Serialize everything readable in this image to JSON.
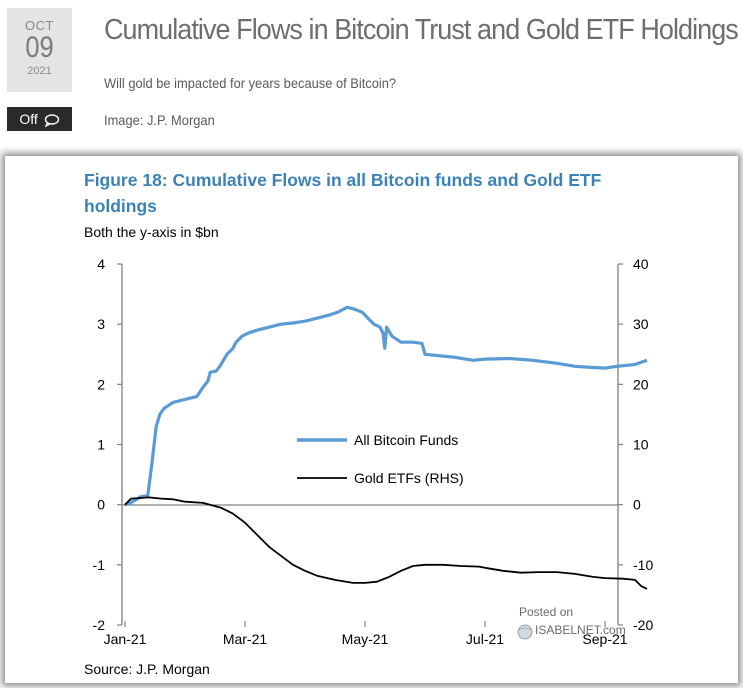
{
  "post": {
    "date_month": "OCT",
    "date_day": "09",
    "date_year": "2021",
    "comments_label": "Off",
    "title": "Cumulative Flows in Bitcoin Trust and Gold ETF Holdings",
    "subtitle": "Will gold be impacted for years because of Bitcoin?",
    "image_credit": "Image: J.P. Morgan"
  },
  "colors": {
    "figure_title": "#3b82b9",
    "bitcoin_series": "#5b9bd5",
    "gold_series": "#000000",
    "axis": "#808080"
  },
  "chart_data": {
    "type": "line",
    "title": "Figure 18: Cumulative Flows in all Bitcoin funds and Gold ETF holdings",
    "title_line1": "Figure 18: Cumulative Flows in all Bitcoin funds and Gold ETF",
    "title_line2": "holdings",
    "subtitle": "Both the y-axis in $bn",
    "source": "Source: J.P. Morgan",
    "watermark_line1": "Posted on",
    "watermark_line2": "ISABELNET.com",
    "x_range": [
      0,
      8.7
    ],
    "x_ticks": [
      {
        "label": "Jan-21",
        "x": 0
      },
      {
        "label": "Mar-21",
        "x": 2
      },
      {
        "label": "May-21",
        "x": 4
      },
      {
        "label": "Jul-21",
        "x": 6
      },
      {
        "label": "Sep-21",
        "x": 8
      }
    ],
    "ylim_left": [
      -2,
      4
    ],
    "yticks_left": [
      4,
      3,
      2,
      1,
      0,
      -1,
      -2
    ],
    "ylim_right": [
      -20,
      40
    ],
    "yticks_right": [
      40,
      30,
      20,
      10,
      0,
      -10,
      -20
    ],
    "legend": {
      "position": "center",
      "entries": [
        "All Bitcoin Funds",
        "Gold ETFs (RHS)"
      ]
    },
    "series": [
      {
        "name": "All Bitcoin Funds",
        "axis": "left",
        "points": [
          [
            0,
            0
          ],
          [
            0.08,
            0.02
          ],
          [
            0.12,
            0.05
          ],
          [
            0.22,
            0.1
          ],
          [
            0.25,
            0.13
          ],
          [
            0.38,
            0.15
          ],
          [
            0.45,
            0.7
          ],
          [
            0.52,
            1.3
          ],
          [
            0.58,
            1.5
          ],
          [
            0.65,
            1.6
          ],
          [
            0.8,
            1.7
          ],
          [
            1,
            1.75
          ],
          [
            1.2,
            1.8
          ],
          [
            1.3,
            1.95
          ],
          [
            1.38,
            2.05
          ],
          [
            1.42,
            2.2
          ],
          [
            1.52,
            2.22
          ],
          [
            1.58,
            2.3
          ],
          [
            1.7,
            2.5
          ],
          [
            1.8,
            2.6
          ],
          [
            1.85,
            2.7
          ],
          [
            1.95,
            2.8
          ],
          [
            2.05,
            2.85
          ],
          [
            2.2,
            2.9
          ],
          [
            2.4,
            2.95
          ],
          [
            2.6,
            3.0
          ],
          [
            2.8,
            3.02
          ],
          [
            3,
            3.05
          ],
          [
            3.2,
            3.1
          ],
          [
            3.4,
            3.15
          ],
          [
            3.55,
            3.2
          ],
          [
            3.7,
            3.28
          ],
          [
            3.82,
            3.25
          ],
          [
            3.95,
            3.2
          ],
          [
            4.05,
            3.1
          ],
          [
            4.15,
            3.0
          ],
          [
            4.25,
            2.95
          ],
          [
            4.3,
            2.85
          ],
          [
            4.33,
            2.6
          ],
          [
            4.36,
            2.95
          ],
          [
            4.45,
            2.8
          ],
          [
            4.6,
            2.7
          ],
          [
            4.8,
            2.7
          ],
          [
            4.95,
            2.68
          ],
          [
            5,
            2.5
          ],
          [
            5.2,
            2.48
          ],
          [
            5.5,
            2.45
          ],
          [
            5.8,
            2.4
          ],
          [
            6,
            2.42
          ],
          [
            6.4,
            2.43
          ],
          [
            6.8,
            2.4
          ],
          [
            7.2,
            2.35
          ],
          [
            7.5,
            2.3
          ],
          [
            7.8,
            2.28
          ],
          [
            8,
            2.27
          ],
          [
            8.2,
            2.3
          ],
          [
            8.5,
            2.33
          ],
          [
            8.7,
            2.4
          ]
        ]
      },
      {
        "name": "Gold ETFs (RHS)",
        "axis": "right",
        "points": [
          [
            0,
            0
          ],
          [
            0.1,
            1
          ],
          [
            0.4,
            1.2
          ],
          [
            0.6,
            1
          ],
          [
            0.8,
            0.9
          ],
          [
            1,
            0.5
          ],
          [
            1.3,
            0.3
          ],
          [
            1.6,
            -0.5
          ],
          [
            1.8,
            -1.5
          ],
          [
            2,
            -3
          ],
          [
            2.2,
            -5
          ],
          [
            2.4,
            -7
          ],
          [
            2.6,
            -8.5
          ],
          [
            2.8,
            -10
          ],
          [
            3,
            -11
          ],
          [
            3.2,
            -11.8
          ],
          [
            3.5,
            -12.5
          ],
          [
            3.8,
            -13
          ],
          [
            4,
            -13
          ],
          [
            4.2,
            -12.8
          ],
          [
            4.4,
            -12
          ],
          [
            4.6,
            -11
          ],
          [
            4.8,
            -10.2
          ],
          [
            5,
            -10
          ],
          [
            5.3,
            -10
          ],
          [
            5.6,
            -10.2
          ],
          [
            5.9,
            -10.3
          ],
          [
            6,
            -10.5
          ],
          [
            6.3,
            -11
          ],
          [
            6.6,
            -11.3
          ],
          [
            6.9,
            -11.2
          ],
          [
            7.2,
            -11.2
          ],
          [
            7.5,
            -11.5
          ],
          [
            7.8,
            -12
          ],
          [
            8,
            -12.2
          ],
          [
            8.3,
            -12.3
          ],
          [
            8.5,
            -12.5
          ],
          [
            8.6,
            -13.5
          ],
          [
            8.7,
            -14
          ]
        ]
      }
    ]
  }
}
